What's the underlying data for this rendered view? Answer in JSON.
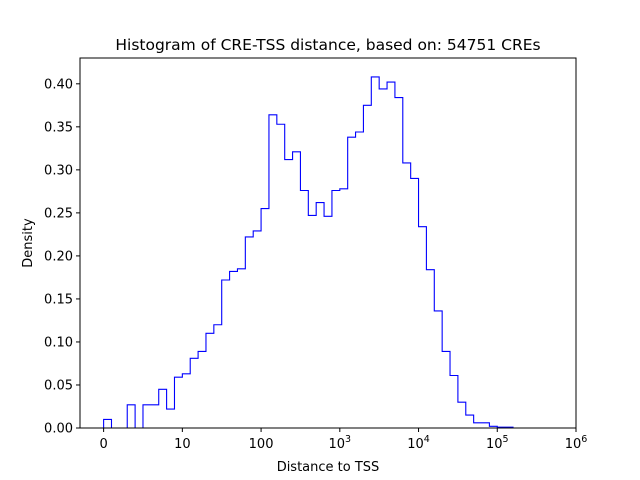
{
  "chart_data": {
    "type": "histogram",
    "title": "Histogram of CRE-TSS distance, based on: 54751 CREs",
    "xlabel": "Distance to TSS",
    "ylabel": "Density",
    "x_scale": "symlog",
    "xlim": [
      -0.3,
      6
    ],
    "ylim": [
      0,
      0.43
    ],
    "grid": false,
    "line_color": "#0000ff",
    "xticks": [
      {
        "pos": 0,
        "base": "0",
        "exp": ""
      },
      {
        "pos": 1,
        "base": "10",
        "exp": ""
      },
      {
        "pos": 2,
        "base": "100",
        "exp": ""
      },
      {
        "pos": 3,
        "base": "10",
        "exp": "3"
      },
      {
        "pos": 4,
        "base": "10",
        "exp": "4"
      },
      {
        "pos": 5,
        "base": "10",
        "exp": "5"
      },
      {
        "pos": 6,
        "base": "10",
        "exp": "6"
      }
    ],
    "yticks": [
      "0.00",
      "0.05",
      "0.10",
      "0.15",
      "0.20",
      "0.25",
      "0.30",
      "0.35",
      "0.40"
    ],
    "bin_edges": [
      0.0,
      0.1,
      0.2,
      0.3,
      0.4,
      0.5,
      0.6,
      0.7,
      0.8,
      0.9,
      1.0,
      1.1,
      1.2,
      1.3,
      1.4,
      1.5,
      1.6,
      1.7,
      1.8,
      1.9,
      2.0,
      2.1,
      2.2,
      2.3,
      2.4,
      2.5,
      2.6,
      2.7,
      2.8,
      2.9,
      3.0,
      3.1,
      3.2,
      3.3,
      3.4,
      3.5,
      3.6,
      3.7,
      3.8,
      3.9,
      4.0,
      4.1,
      4.2,
      4.3,
      4.4,
      4.5,
      4.6,
      4.7,
      4.8,
      4.9,
      5.0,
      5.1,
      5.2,
      5.3,
      5.4,
      5.5
    ],
    "densities": [
      0.01,
      0.0,
      0.0,
      0.027,
      0.0,
      0.027,
      0.027,
      0.045,
      0.022,
      0.059,
      0.063,
      0.081,
      0.089,
      0.11,
      0.12,
      0.172,
      0.182,
      0.185,
      0.222,
      0.229,
      0.255,
      0.364,
      0.353,
      0.312,
      0.321,
      0.276,
      0.247,
      0.262,
      0.246,
      0.276,
      0.278,
      0.338,
      0.344,
      0.375,
      0.408,
      0.394,
      0.402,
      0.384,
      0.308,
      0.29,
      0.234,
      0.184,
      0.136,
      0.089,
      0.061,
      0.03,
      0.015,
      0.006,
      0.006,
      0.002,
      0.001,
      0.001,
      0.0,
      0.0,
      0.0
    ]
  }
}
